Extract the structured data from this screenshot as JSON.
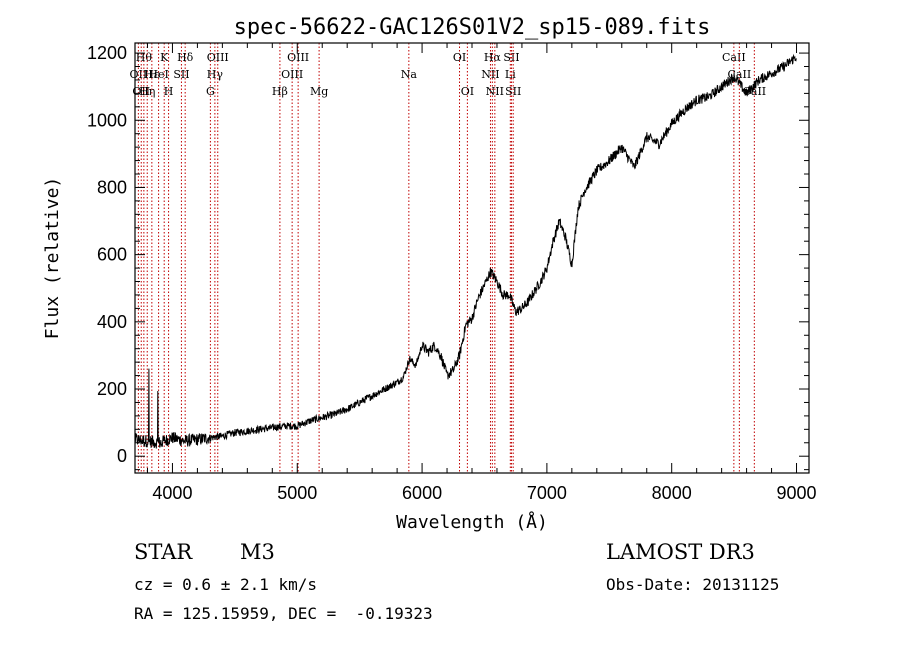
{
  "chart_data": {
    "type": "line",
    "title": "spec-56622-GAC126S01V2_sp15-089.fits",
    "xlabel": "Wavelength (Å)",
    "ylabel": "Flux (relative)",
    "xlim": [
      3700,
      9100
    ],
    "ylim": [
      -50,
      1230
    ],
    "xticks": [
      4000,
      5000,
      6000,
      7000,
      8000,
      9000
    ],
    "yticks": [
      0,
      200,
      400,
      600,
      800,
      1000,
      1200
    ],
    "line_color": "#000000",
    "marker_color": "#c00000",
    "series": [
      {
        "name": "flux",
        "x": [
          3700,
          3800,
          3900,
          4000,
          4100,
          4200,
          4300,
          4400,
          4500,
          4600,
          4700,
          4800,
          4900,
          5000,
          5100,
          5200,
          5300,
          5400,
          5500,
          5600,
          5700,
          5800,
          5850,
          5900,
          5950,
          6000,
          6050,
          6100,
          6150,
          6200,
          6250,
          6300,
          6350,
          6400,
          6450,
          6500,
          6550,
          6600,
          6650,
          6700,
          6750,
          6800,
          6850,
          6900,
          6950,
          7000,
          7050,
          7100,
          7150,
          7200,
          7250,
          7300,
          7400,
          7500,
          7600,
          7700,
          7800,
          7900,
          8000,
          8100,
          8200,
          8300,
          8400,
          8500,
          8600,
          8700,
          8800,
          8900,
          9000
        ],
        "values": [
          50,
          45,
          40,
          55,
          45,
          50,
          55,
          60,
          70,
          75,
          80,
          85,
          90,
          90,
          105,
          115,
          125,
          140,
          160,
          180,
          200,
          220,
          235,
          290,
          270,
          330,
          310,
          330,
          300,
          240,
          255,
          300,
          390,
          410,
          470,
          510,
          550,
          520,
          480,
          480,
          430,
          440,
          460,
          490,
          520,
          560,
          640,
          700,
          650,
          570,
          740,
          790,
          850,
          880,
          920,
          860,
          950,
          930,
          990,
          1030,
          1060,
          1070,
          1100,
          1130,
          1080,
          1120,
          1140,
          1160,
          1190
        ]
      }
    ],
    "line_markers": [
      {
        "wavelength": 3727,
        "label": "OII",
        "row": 2
      },
      {
        "wavelength": 3750,
        "label": "OII",
        "row": 3
      },
      {
        "wavelength": 3771,
        "label": "Hθ",
        "row": 1
      },
      {
        "wavelength": 3798,
        "label": "Hη",
        "row": 3
      },
      {
        "wavelength": 3835,
        "label": "Hε",
        "row": 2
      },
      {
        "wavelength": 3889,
        "label": "HeI",
        "row": 2
      },
      {
        "wavelength": 3934,
        "label": "K",
        "row": 1
      },
      {
        "wavelength": 3969,
        "label": "H",
        "row": 3
      },
      {
        "wavelength": 4072,
        "label": "SII",
        "row": 2
      },
      {
        "wavelength": 4102,
        "label": "Hδ",
        "row": 1
      },
      {
        "wavelength": 4304,
        "label": "G",
        "row": 3
      },
      {
        "wavelength": 4340,
        "label": "Hγ",
        "row": 2
      },
      {
        "wavelength": 4363,
        "label": "OIII",
        "row": 1
      },
      {
        "wavelength": 4861,
        "label": "Hβ",
        "row": 3
      },
      {
        "wavelength": 4959,
        "label": "OIII",
        "row": 2
      },
      {
        "wavelength": 5007,
        "label": "OIII",
        "row": 1
      },
      {
        "wavelength": 5175,
        "label": "Mg",
        "row": 3
      },
      {
        "wavelength": 5894,
        "label": "Na",
        "row": 2
      },
      {
        "wavelength": 6300,
        "label": "OI",
        "row": 1
      },
      {
        "wavelength": 6363,
        "label": "OI",
        "row": 3
      },
      {
        "wavelength": 6548,
        "label": "NII",
        "row": 2
      },
      {
        "wavelength": 6563,
        "label": "Hα",
        "row": 1
      },
      {
        "wavelength": 6583,
        "label": "NII",
        "row": 3
      },
      {
        "wavelength": 6707,
        "label": "Li",
        "row": 2
      },
      {
        "wavelength": 6716,
        "label": "SII",
        "row": 1
      },
      {
        "wavelength": 6730,
        "label": "SII",
        "row": 3
      },
      {
        "wavelength": 8498,
        "label": "CaII",
        "row": 1
      },
      {
        "wavelength": 8542,
        "label": "CaII",
        "row": 2
      },
      {
        "wavelength": 8662,
        "label": "CaII",
        "row": 3
      }
    ]
  },
  "info": {
    "object_class": "STAR",
    "subclass": "M3",
    "survey": "LAMOST DR3",
    "redshift": "cz = 0.6 ± 2.1 km/s",
    "obs_date": "Obs-Date: 20131125",
    "coords": "RA = 125.15959, DEC =  -0.19323"
  }
}
